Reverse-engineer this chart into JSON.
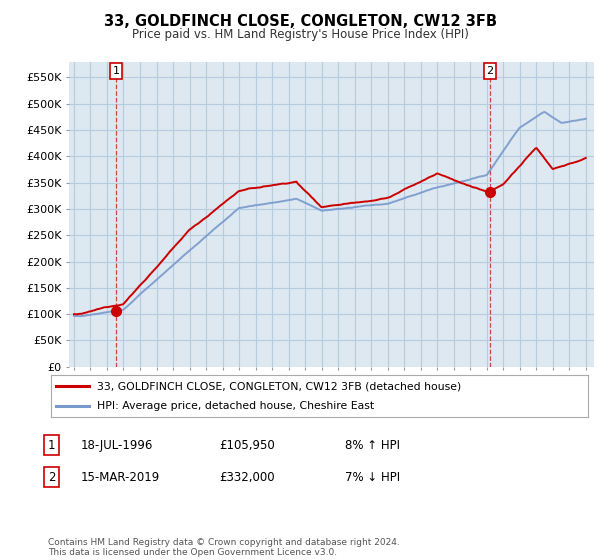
{
  "title": "33, GOLDFINCH CLOSE, CONGLETON, CW12 3FB",
  "subtitle": "Price paid vs. HM Land Registry's House Price Index (HPI)",
  "ylabel_ticks": [
    "£0",
    "£50K",
    "£100K",
    "£150K",
    "£200K",
    "£250K",
    "£300K",
    "£350K",
    "£400K",
    "£450K",
    "£500K",
    "£550K"
  ],
  "ytick_values": [
    0,
    50000,
    100000,
    150000,
    200000,
    250000,
    300000,
    350000,
    400000,
    450000,
    500000,
    550000
  ],
  "ylim": [
    0,
    580000
  ],
  "xlim_left": 1993.7,
  "xlim_right": 2025.5,
  "sale1_date": 1996.54,
  "sale1_price": 105950,
  "sale2_date": 2019.21,
  "sale2_price": 332000,
  "legend_line1": "33, GOLDFINCH CLOSE, CONGLETON, CW12 3FB (detached house)",
  "legend_line2": "HPI: Average price, detached house, Cheshire East",
  "table_row1": [
    "1",
    "18-JUL-1996",
    "£105,950",
    "8% ↑ HPI"
  ],
  "table_row2": [
    "2",
    "15-MAR-2019",
    "£332,000",
    "7% ↓ HPI"
  ],
  "footer": "Contains HM Land Registry data © Crown copyright and database right 2024.\nThis data is licensed under the Open Government Licence v3.0.",
  "line_color_property": "#cc0000",
  "line_color_hpi": "#7799cc",
  "background_color": "#f0f0f0",
  "plot_bg_color": "#dde8f0",
  "grid_color": "#b8cce0",
  "marker_color": "#cc0000"
}
